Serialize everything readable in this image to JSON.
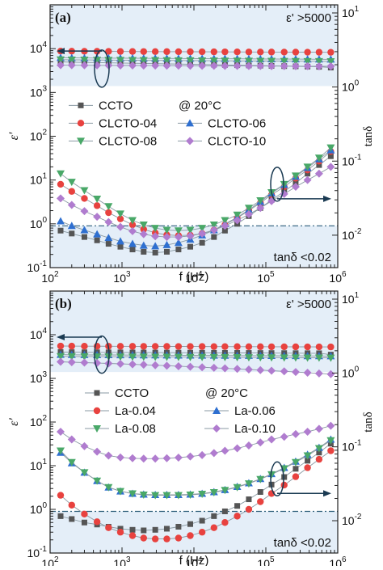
{
  "chart_data": [
    {
      "type": "scatter",
      "panel_label": "(a)",
      "annotation_eps": "ε' >5000",
      "annotation_tan": "tanδ <0.02",
      "annotation_temp": "@ 20°C",
      "xlabel": "f (Hz)",
      "ylabel_left": "ε'",
      "ylabel_right": "tanδ",
      "x_scale": "log",
      "y_scale": "log",
      "xlim": [
        100,
        1000000
      ],
      "ylim": [
        0.1,
        100000
      ],
      "x_ticks": [
        "10^2",
        "10^3",
        "10^4",
        "10^5",
        "10^6"
      ],
      "y_ticks": [
        "10^-1",
        "10^0",
        "10^1",
        "10^2",
        "10^3",
        "10^4"
      ],
      "right_ticks": [
        "10^-2",
        "10^-1",
        "10^0",
        "10^1"
      ],
      "legend_placement": "center",
      "x": [
        140,
        200,
        300,
        450,
        650,
        950,
        1400,
        2000,
        2900,
        4200,
        6100,
        8900,
        13000,
        19000,
        27000,
        40000,
        58000,
        84000,
        120000,
        180000,
        260000,
        380000,
        550000,
        800000
      ],
      "series": [
        {
          "name": "CCTO",
          "color": "#555555",
          "marker": "square",
          "eps": [
            5000,
            4900,
            4850,
            4800,
            4750,
            4700,
            4650,
            4600,
            4550,
            4500,
            4450,
            4400,
            4350,
            4300,
            4250,
            4200,
            4150,
            4100,
            4050,
            4000,
            3950,
            3900,
            3850,
            3700
          ],
          "tan": [
            0.7,
            0.6,
            0.5,
            0.42,
            0.35,
            0.3,
            0.26,
            0.23,
            0.22,
            0.23,
            0.26,
            0.3,
            0.37,
            0.5,
            0.7,
            1,
            1.5,
            2.3,
            3.5,
            5.5,
            8.5,
            14,
            22,
            35
          ]
        },
        {
          "name": "CLCTO-04",
          "color": "#e8423f",
          "marker": "circle",
          "eps": [
            8800,
            8750,
            8700,
            8680,
            8650,
            8620,
            8600,
            8580,
            8560,
            8540,
            8520,
            8500,
            8480,
            8460,
            8440,
            8420,
            8400,
            8380,
            8360,
            8340,
            8320,
            8300,
            8280,
            8260
          ],
          "tan": [
            8,
            5.5,
            3.8,
            2.6,
            1.8,
            1.3,
            0.95,
            0.75,
            0.62,
            0.56,
            0.54,
            0.55,
            0.6,
            0.72,
            0.95,
            1.35,
            2,
            3,
            4.6,
            7,
            11,
            17,
            27,
            45
          ]
        },
        {
          "name": "CLCTO-06",
          "color": "#2e6fd0",
          "marker": "triangle-up",
          "eps": [
            6200,
            6150,
            6120,
            6100,
            6080,
            6060,
            6040,
            6020,
            6000,
            5980,
            5960,
            5940,
            5920,
            5900,
            5880,
            5860,
            5840,
            5820,
            5800,
            5780,
            5760,
            5740,
            5720,
            5700
          ],
          "tan": [
            1.15,
            0.9,
            0.72,
            0.58,
            0.48,
            0.4,
            0.35,
            0.32,
            0.31,
            0.33,
            0.37,
            0.44,
            0.55,
            0.72,
            1,
            1.4,
            2.1,
            3.2,
            5,
            7.8,
            12,
            19,
            30,
            48
          ]
        },
        {
          "name": "CLCTO-08",
          "color": "#49a868",
          "marker": "triangle-down",
          "eps": [
            5600,
            5550,
            5520,
            5500,
            5480,
            5460,
            5440,
            5420,
            5400,
            5380,
            5360,
            5340,
            5320,
            5300,
            5280,
            5260,
            5240,
            5220,
            5200,
            5180,
            5160,
            5140,
            5120,
            5100
          ],
          "tan": [
            14,
            9,
            5.8,
            3.7,
            2.5,
            1.7,
            1.2,
            0.95,
            0.8,
            0.72,
            0.7,
            0.72,
            0.8,
            0.95,
            1.2,
            1.6,
            2.3,
            3.4,
            5.2,
            8,
            12.5,
            20,
            32,
            55
          ]
        },
        {
          "name": "CLCTO-10",
          "color": "#b07ccf",
          "marker": "diamond",
          "eps": [
            4200,
            4180,
            4160,
            4150,
            4140,
            4130,
            4120,
            4110,
            4100,
            4090,
            4080,
            4070,
            4060,
            4050,
            4040,
            4030,
            4020,
            4010,
            4000,
            3990,
            3980,
            3970,
            3960,
            3950
          ],
          "tan": [
            3.8,
            2.7,
            1.95,
            1.45,
            1.1,
            0.85,
            0.68,
            0.58,
            0.52,
            0.5,
            0.5,
            0.53,
            0.6,
            0.72,
            0.9,
            1.2,
            1.65,
            2.3,
            3.3,
            4.8,
            7,
            10,
            14,
            20
          ]
        }
      ]
    },
    {
      "type": "scatter",
      "panel_label": "(b)",
      "annotation_eps": "ε' >5000",
      "annotation_tan": "tanδ <0.02",
      "annotation_temp": "@ 20°C",
      "xlabel": "f (Hz)",
      "ylabel_left": "ε'",
      "ylabel_right": "tanδ",
      "x_scale": "log",
      "y_scale": "log",
      "xlim": [
        100,
        1000000
      ],
      "ylim": [
        0.1,
        100000
      ],
      "x_ticks": [
        "10^2",
        "10^3",
        "10^4",
        "10^5",
        "10^6"
      ],
      "y_ticks": [
        "10^-1",
        "10^0",
        "10^1",
        "10^2",
        "10^3",
        "10^4"
      ],
      "right_ticks": [
        "10^-2",
        "10^-1",
        "10^0",
        "10^1"
      ],
      "legend_placement": "center",
      "x": [
        140,
        200,
        300,
        450,
        650,
        950,
        1400,
        2000,
        2900,
        4200,
        6100,
        8900,
        13000,
        19000,
        27000,
        40000,
        58000,
        84000,
        120000,
        180000,
        260000,
        380000,
        550000,
        800000
      ],
      "series": [
        {
          "name": "CCTO",
          "color": "#555555",
          "marker": "square",
          "eps": [
            4000,
            3980,
            3960,
            3950,
            3940,
            3930,
            3920,
            3910,
            3900,
            3890,
            3880,
            3870,
            3860,
            3850,
            3840,
            3830,
            3820,
            3810,
            3800,
            3790,
            3780,
            3770,
            3760,
            3500
          ],
          "tan": [
            0.7,
            0.6,
            0.5,
            0.45,
            0.4,
            0.36,
            0.34,
            0.33,
            0.34,
            0.36,
            0.4,
            0.46,
            0.55,
            0.7,
            0.9,
            1.2,
            1.7,
            2.5,
            3.7,
            5.5,
            8.5,
            13,
            20,
            32
          ]
        },
        {
          "name": "La-0.04",
          "color": "#e8423f",
          "marker": "circle",
          "eps": [
            5500,
            5480,
            5460,
            5450,
            5440,
            5430,
            5420,
            5410,
            5400,
            5390,
            5380,
            5370,
            5360,
            5350,
            5340,
            5330,
            5320,
            5310,
            5300,
            5290,
            5280,
            5270,
            5260,
            5250
          ],
          "tan": [
            2.1,
            1.25,
            0.78,
            0.52,
            0.38,
            0.3,
            0.25,
            0.22,
            0.21,
            0.21,
            0.22,
            0.25,
            0.3,
            0.38,
            0.5,
            0.7,
            1,
            1.5,
            2.3,
            3.6,
            5.6,
            9,
            14,
            22
          ]
        },
        {
          "name": "La-0.06",
          "color": "#2e6fd0",
          "marker": "triangle-up",
          "eps": [
            3500,
            3480,
            3460,
            3450,
            3440,
            3430,
            3420,
            3410,
            3400,
            3390,
            3380,
            3370,
            3360,
            3350,
            3340,
            3330,
            3320,
            3310,
            3300,
            3290,
            3280,
            3270,
            3260,
            3250
          ],
          "tan": [
            20,
            11.5,
            7,
            4.5,
            3.2,
            2.6,
            2.3,
            2.2,
            2.15,
            2.15,
            2.15,
            2.2,
            2.3,
            2.5,
            2.8,
            3.3,
            4,
            5,
            6.5,
            9,
            12.5,
            18,
            26,
            40
          ]
        },
        {
          "name": "La-0.08",
          "color": "#49a868",
          "marker": "triangle-down",
          "eps": [
            3200,
            3180,
            3160,
            3150,
            3140,
            3130,
            3120,
            3110,
            3100,
            3090,
            3080,
            3070,
            3060,
            3050,
            3040,
            3030,
            3020,
            3010,
            3000,
            2990,
            2980,
            2970,
            2960,
            2950
          ],
          "tan": [
            22,
            12,
            7,
            4.5,
            3.2,
            2.6,
            2.3,
            2.15,
            2.1,
            2.1,
            2.1,
            2.15,
            2.25,
            2.45,
            2.75,
            3.2,
            3.9,
            4.9,
            6.3,
            8.6,
            12,
            17,
            25,
            38
          ]
        },
        {
          "name": "La-0.10",
          "color": "#b07ccf",
          "marker": "diamond",
          "eps": [
            2400,
            2350,
            2300,
            2250,
            2200,
            2150,
            2100,
            2050,
            2000,
            1950,
            1900,
            1850,
            1800,
            1750,
            1700,
            1650,
            1600,
            1550,
            1500,
            1450,
            1400,
            1350,
            1300,
            1250
          ],
          "tan": [
            60,
            40,
            28,
            21,
            17,
            15.5,
            14.8,
            14.5,
            14.5,
            14.8,
            15.3,
            16.2,
            17.5,
            19.5,
            22,
            25,
            29,
            34,
            40,
            46,
            53,
            60,
            70,
            82
          ]
        }
      ]
    }
  ]
}
